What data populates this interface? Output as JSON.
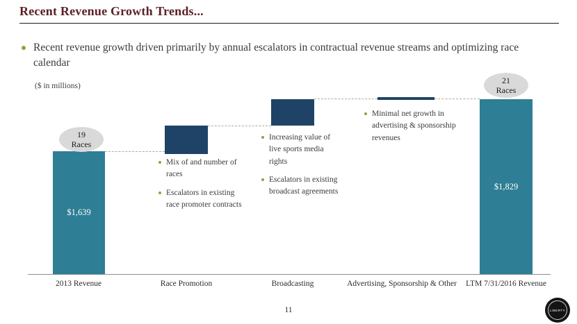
{
  "slide": {
    "title": "Recent Revenue Growth Trends...",
    "lead_bullet": "Recent revenue growth driven primarily by annual escalators in contractual revenue streams and optimizing race calendar",
    "units_label": "($ in millions)",
    "page_number": "11",
    "logo_text": "LIBERTY"
  },
  "chart_data": {
    "type": "bar",
    "variant": "waterfall",
    "title": "Recent Revenue Growth Trends",
    "units": "$ in millions",
    "categories": [
      "2013 Revenue",
      "Race Promotion",
      "Broadcasting",
      "Advertising, Sponsorship & Other",
      "LTM 7/31/2016 Revenue"
    ],
    "series": [
      {
        "name": "Revenue ($ in millions)",
        "values": [
          1639,
          null,
          null,
          null,
          1829
        ]
      }
    ],
    "bar_value_labels": {
      "start": "$1,639",
      "end": "$1,829"
    },
    "badges": {
      "start": {
        "value": "19",
        "label": "Races"
      },
      "end": {
        "value": "21",
        "label": "Races"
      }
    },
    "annotations": {
      "race_promotion": [
        "Mix of and number of races",
        "Escalators in existing race promoter contracts"
      ],
      "broadcasting": [
        "Increasing value of live sports media rights",
        "Escalators in existing broadcast agreements"
      ],
      "advertising": [
        "Minimal net growth in advertising & sponsorship revenues"
      ]
    },
    "layout_hints": {
      "legend": false,
      "gridlines": false,
      "baseline_axis": true,
      "connectors": "dashed"
    },
    "colors": {
      "revenue_bar": "#2E7E95",
      "delta_bar": "#1F4366",
      "badge_fill": "#D9D9D9",
      "accent_bullet": "#9C9C3F",
      "title_text": "#5C2125",
      "connector": "#B3A999"
    }
  }
}
